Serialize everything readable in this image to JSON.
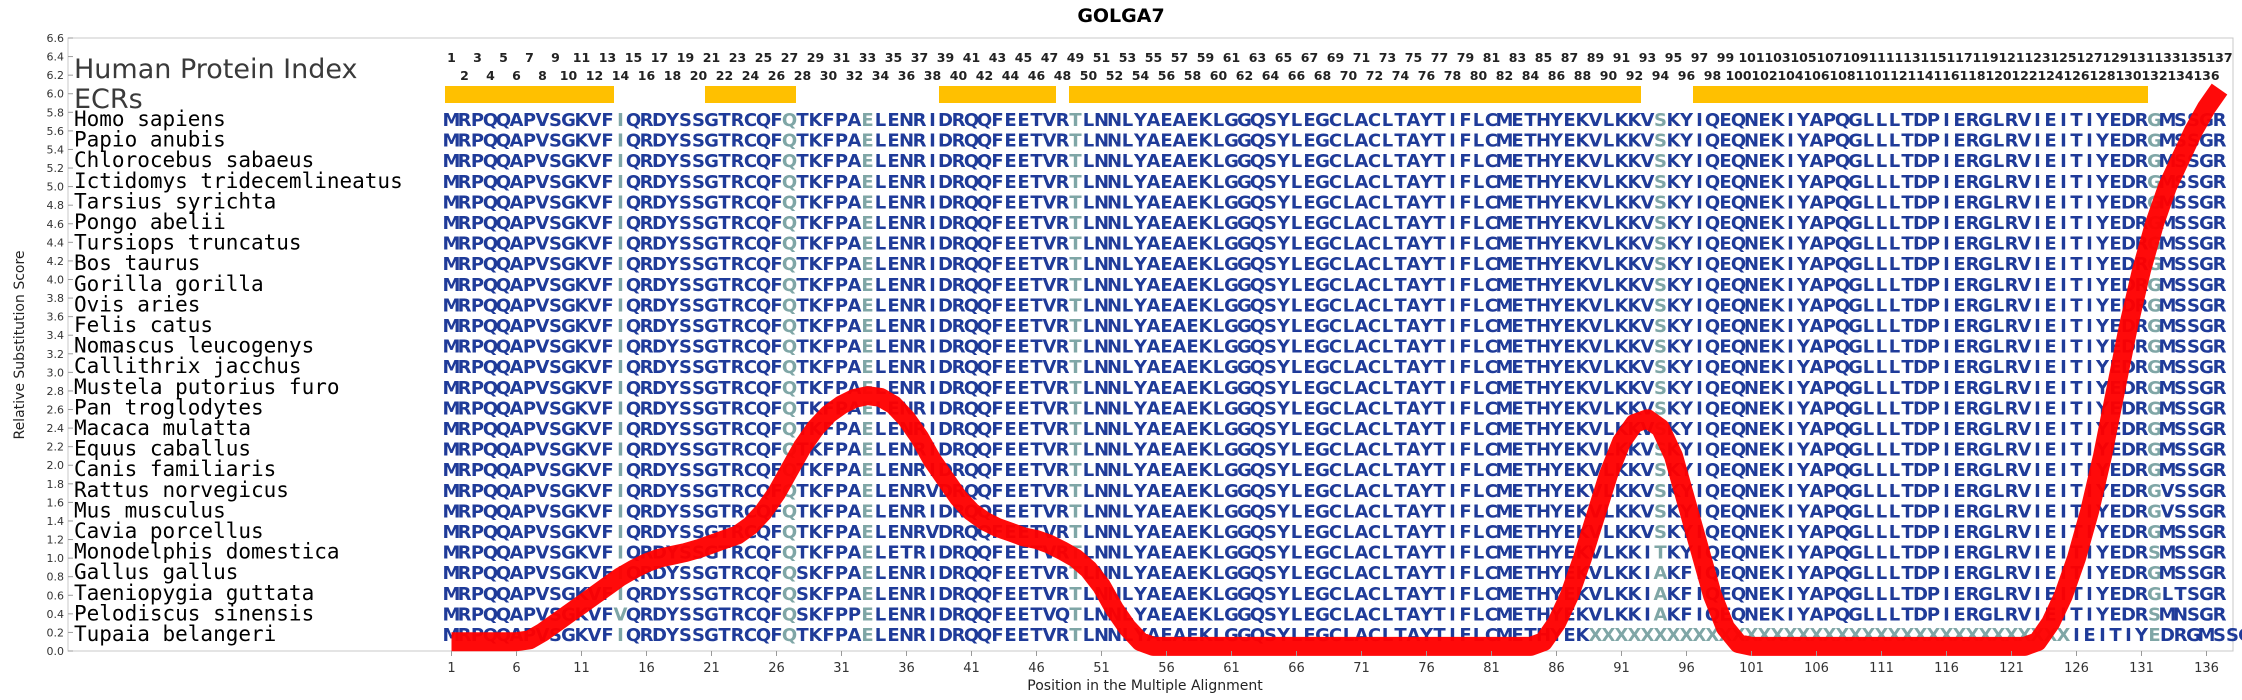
{
  "chart_data": {
    "type": "line",
    "title": "GOLGA7",
    "xlabel": "Position in the Multiple Alignment",
    "ylabel": "Relative Substitution Score",
    "xlim": [
      0,
      137
    ],
    "ylim": [
      0,
      6.6
    ],
    "y_ticks": [
      0.0,
      0.2,
      0.4,
      0.6,
      0.8,
      1.0,
      1.2,
      1.4,
      1.6,
      1.8,
      2.0,
      2.2,
      2.4,
      2.6,
      2.8,
      3.0,
      3.2,
      3.4,
      3.6,
      3.8,
      4.0,
      4.2,
      4.4,
      4.6,
      4.8,
      5.0,
      5.2,
      5.4,
      5.6,
      5.8,
      6.0,
      6.2,
      6.4,
      6.6
    ],
    "x_ticks": [
      1,
      6,
      11,
      16,
      21,
      26,
      31,
      36,
      41,
      46,
      51,
      56,
      61,
      66,
      71,
      76,
      81,
      86,
      91,
      96,
      101,
      106,
      111,
      116,
      121,
      126,
      131,
      136
    ],
    "row_label_index": "Human Protein Index",
    "row_label_ecrs": "ECRs",
    "protein_index_count": 137,
    "ecr_regions": [
      [
        1,
        13
      ],
      [
        21,
        27
      ],
      [
        39,
        47
      ],
      [
        49,
        92
      ],
      [
        97,
        131
      ]
    ],
    "ecr_color": "#FFC000",
    "line_color": "#FF0000",
    "residue_color": "#1F3B99",
    "variant_color": "#7FA6A6",
    "score_curve": {
      "x": [
        1,
        2,
        3,
        4,
        5,
        6,
        7,
        8,
        9,
        10,
        11,
        12,
        13,
        14,
        15,
        16,
        17,
        18,
        19,
        20,
        21,
        22,
        23,
        24,
        25,
        26,
        27,
        28,
        29,
        30,
        31,
        32,
        33,
        34,
        35,
        36,
        37,
        38,
        39,
        40,
        41,
        42,
        43,
        44,
        45,
        46,
        47,
        48,
        49,
        50,
        51,
        52,
        53,
        54,
        55,
        56,
        57,
        58,
        59,
        60,
        61,
        62,
        63,
        64,
        65,
        66,
        67,
        68,
        69,
        70,
        71,
        72,
        73,
        74,
        75,
        76,
        77,
        78,
        79,
        80,
        81,
        82,
        83,
        84,
        85,
        86,
        87,
        88,
        89,
        90,
        91,
        92,
        93,
        94,
        95,
        96,
        97,
        98,
        99,
        100,
        101,
        102,
        103,
        104,
        105,
        106,
        107,
        108,
        109,
        110,
        111,
        112,
        113,
        114,
        115,
        116,
        117,
        118,
        119,
        120,
        121,
        122,
        123,
        124,
        125,
        126,
        127,
        128,
        129,
        130,
        131,
        132,
        133,
        134,
        135,
        136,
        137
      ],
      "y": [
        0.1,
        0.1,
        0.1,
        0.1,
        0.1,
        0.1,
        0.12,
        0.2,
        0.3,
        0.4,
        0.5,
        0.6,
        0.7,
        0.8,
        0.88,
        0.95,
        1.0,
        1.03,
        1.06,
        1.1,
        1.15,
        1.2,
        1.25,
        1.35,
        1.5,
        1.7,
        1.95,
        2.2,
        2.4,
        2.55,
        2.65,
        2.72,
        2.75,
        2.73,
        2.65,
        2.5,
        2.3,
        2.05,
        1.85,
        1.65,
        1.5,
        1.4,
        1.33,
        1.28,
        1.23,
        1.2,
        1.15,
        1.08,
        1.0,
        0.88,
        0.7,
        0.45,
        0.25,
        0.1,
        0.05,
        0.05,
        0.05,
        0.05,
        0.05,
        0.05,
        0.05,
        0.05,
        0.05,
        0.05,
        0.05,
        0.05,
        0.05,
        0.05,
        0.05,
        0.05,
        0.05,
        0.05,
        0.05,
        0.05,
        0.05,
        0.05,
        0.05,
        0.05,
        0.05,
        0.05,
        0.05,
        0.05,
        0.05,
        0.05,
        0.1,
        0.3,
        0.6,
        1.0,
        1.45,
        1.9,
        2.25,
        2.45,
        2.5,
        2.4,
        2.1,
        1.6,
        1.1,
        0.6,
        0.25,
        0.08,
        0.05,
        0.05,
        0.05,
        0.05,
        0.05,
        0.05,
        0.05,
        0.05,
        0.05,
        0.05,
        0.05,
        0.05,
        0.05,
        0.05,
        0.05,
        0.05,
        0.05,
        0.05,
        0.05,
        0.05,
        0.05,
        0.05,
        0.1,
        0.3,
        0.6,
        1.0,
        1.5,
        2.1,
        2.8,
        3.5,
        4.1,
        4.6,
        5.0,
        5.3,
        5.6,
        5.85,
        6.05
      ]
    },
    "variant_columns": [
      14,
      27,
      33,
      49,
      94,
      132
    ],
    "species": [
      {
        "name": "Homo sapiens",
        "seq": "MRPQQAPVSGKVFIQRDYSSGTRCQFQTKFPAELENRIDRQQFEETVRTLNNLYAEAEKLGGQSYLEGCLACLTAYTIFLCMETHYEKVLKKVSKYIQEQNEKIYAPQGLLLTDPIERGLRVIEITIYEDRGMSSGR"
      },
      {
        "name": "Papio anubis",
        "seq": "MRPQQAPVSGKVFIQRDYSSGTRCQFQTKFPAELENRIDRQQFEETVRTLNNLYAEAEKLGGQSYLEGCLACLTAYTIFLCMETHYEKVLKKVSKYIQEQNEKIYAPQGLLLTDPIERGLRVIEITIYEDRGMSSGR"
      },
      {
        "name": "Chlorocebus sabaeus",
        "seq": "MRPQQAPVSGKVFIQRDYSSGTRCQFQTKFPAELENRIDRQQFEETVRTLNNLYAEAEKLGGQSYLEGCLACLTAYTIFLCMETHYEKVLKKVSKYIQEQNEKIYAPQGLLLTDPIERGLRVIEITIYEDRGMSSGR"
      },
      {
        "name": "Ictidomys tridecemlineatus",
        "seq": "MRPQQAPVSGKVFIQRDYSSGTRCQFQTKFPAELENRIDRQQFEETVRTLNNLYAEAEKLGGQSYLEGCLACLTAYTIFLCMETHYEKVLKKVSKYIQEQNEKIYAPQGLLLTDPIERGLRVIEITIYEDRGMSSGR"
      },
      {
        "name": "Tarsius syrichta",
        "seq": "MRPQQAPVSGKVFIQRDYSSGTRCQFQTKFPAELENRIDRQQFEETVRTLNNLYAEAEKLGGQSYLEGCLACLTAYTIFLCMETHYEKVLKKVSKYIQEQNEKIYAPQGLLLTDPIERGLRVIEITIYEDRGMSSGR"
      },
      {
        "name": "Pongo abelii",
        "seq": "MRPQQAPVSGKVFIQRDYSSGTRCQFQTKFPAELENRIDRQQFEETVRTLNNLYAEAEKLGGQSYLEGCLACLTAYTIFLCMETHYEKVLKKVSKYIQEQNEKIYAPQGLLLTDPIERGLRVIEITIYEDRGMSSGR"
      },
      {
        "name": "Tursiops truncatus",
        "seq": "MRPQQAPVSGKVFIQRDYSSGTRCQFQTKFPAELENRIDRQQFEETVRTLNNLYAEAEKLGGQSYLEGCLACLTAYTIFLCMETHYEKVLKKVSKYIQEQNEKIYAPQGLLLTDPIERGLRVIEITIYEDRGMSSGR"
      },
      {
        "name": "Bos taurus",
        "seq": "MRPQQAPVSGKVFIQRDYSSGTRCQFQTKFPAELENRIDRQQFEETVRTLNNLYAEAEKLGGQSYLEGCLACLTAYTIFLCMETHYEKVLKKVSKYIQEQNEKIYAPQGLLLTDPIERGLRVIEITIYEDRGMSSGR"
      },
      {
        "name": "Gorilla gorilla",
        "seq": "MRPQQAPVSGKVFIQRDYSSGTRCQFQTKFPAELENRIDRQQFEETVRTLNNLYAEAEKLGGQSYLEGCLACLTAYTIFLCMETHYEKVLKKVSKYIQEQNEKIYAPQGLLLTDPIERGLRVIEITIYEDRGMSSGR"
      },
      {
        "name": "Ovis aries",
        "seq": "MRPQQAPVSGKVFIQRDYSSGTRCQFQTKFPAELENRIDRQQFEETVRTLNNLYAEAEKLGGQSYLEGCLACLTAYTIFLCMETHYEKVLKKVSKYIQEQNEKIYAPQGLLLTDPIERGLRVIEITIYEDRGMSSGR"
      },
      {
        "name": "Felis catus",
        "seq": "MRPQQAPVSGKVFIQRDYSSGTRCQFQTKFPAELENRIDRQQFEETVRTLNNLYAEAEKLGGQSYLEGCLACLTAYTIFLCMETHYEKVLKKVSKYIQEQNEKIYAPQGLLLTDPIERGLRVIEITIYEDRGMSSGR"
      },
      {
        "name": "Nomascus leucogenys",
        "seq": "MRPQQAPVSGKVFIQRDYSSGTRCQFQTKFPAELENRIDRQQFEETVRTLNNLYAEAEKLGGQSYLEGCLACLTAYTIFLCMETHYEKVLKKVSKYIQEQNEKIYAPQGLLLTDPIERGLRVIEITIYEDRGMSSGR"
      },
      {
        "name": "Callithrix jacchus",
        "seq": "MRPQQAPVSGKVFIQRDYSSGTRCQFQTKFPAELENRIDRQQFEETVRTLNNLYAEAEKLGGQSYLEGCLACLTAYTIFLCMETHYEKVLKKVSKYIQEQNEKIYAPQGLLLTDPIERGLRVIEITIYEDRGMSSGR"
      },
      {
        "name": "Mustela putorius furo",
        "seq": "MRPQQAPVSGKVFIQRDYSSGTRCQFQTKFPAELENRIDRQQFEETVRTLNNLYAEAEKLGGQSYLEGCLACLTAYTIFLCMETHYEKVLKKVSKYIQEQNEKIYAPQGLLLTDPIERGLRVIEITIYEDRGMSSGR"
      },
      {
        "name": "Pan troglodytes",
        "seq": "MRPQQAPVSGKVFIQRDYSSGTRCQFQTKFPAELENRIDRQQFEETVRTLNNLYAEAEKLGGQSYLEGCLACLTAYTIFLCMETHYEKVLKKVSKYIQEQNEKIYAPQGLLLTDPIERGLRVIEITIYEDRGMSSGR"
      },
      {
        "name": "Macaca mulatta",
        "seq": "MRPQQAPVSGKVFIQRDYSSGTRCQFQTKFPAELENRIDRQQFEETVRTLNNLYAEAEKLGGQSYLEGCLACLTAYTIFLCMETHYEKVLKKVSKYIQEQNEKIYAPQGLLLTDPIERGLRVIEITIYEDRGMSSGR"
      },
      {
        "name": "Equus caballus",
        "seq": "MRPQQAPVSGKVFIQRDYSSGTRCQFQTKFPAELENRIDRQQFEETVRTLNNLYAEAEKLGGQSYLEGCLACLTAYTIFLCMETHYEKVLKKVSKYIQEQNEKIYAPQGLLLTDPIERGLRVIEITIYEDRGMSSGR"
      },
      {
        "name": "Canis familiaris",
        "seq": "MRPQQAPVSGKVFIQRDYSSGTRCQFQTKFPAELENRIDRQQFEETVRTLNNLYAEAEKLGGQSYLEGCLACLTAYTIFLCMETHYEKVLKKVSKYIQEQNEKIYAPQGLLLTDPIERGLRVIEITIYEDRGMSSGR"
      },
      {
        "name": "Rattus norvegicus",
        "seq": "MRPQQAPVSGKVFIQRDYSSGTRCQFQTKFPAELENRVDRQQFEETVRTLNNLYAEAEKLGGQSYLEGCLACLTAYTIFLCMETHYEKVLKKVSKYIQEQNEKIYAPQGLLLTDPIERGLRVIEITIYEDRGVSSGR"
      },
      {
        "name": "Mus musculus",
        "seq": "MRPQQAPVSGKVFIQRDYSSGTRCQFQTKFPAELENRIDRQQFEETVRTLNNLYAEAEKLGGQSYLEGCLACLTAYTIFLCMETHYEKVLKKVSKYIQEQNEKIYAPQGLLLTDPIERGLRVIEITIYEDRGVSSGR"
      },
      {
        "name": "Cavia porcellus",
        "seq": "MRPQQAPVSGKVFIQRDYSSGTRCQFQTKFPAELENRVDRQQFEETVRTLNNLYAEAEKLGGQSYLEGCLACLTAYTIFLCMETHYEKVLKKVSKYIQEQNEKIYAPQGLLLTDPIERGLRVIEITIYEDRGMSSGR"
      },
      {
        "name": "Monodelphis domestica",
        "seq": "MRPQQAPVSGKVFIQRDYSSGTRCQFQTKFPAELETRIDRQQFEETVRTLNNLYAEAEKLGGQSYLEGCLACLTAYTIFLCMETHYEKVLKKITKYIQEQNEKIYAPQGLLLTDPIERGLRVIEITIYEDRSMSSGR"
      },
      {
        "name": "Gallus gallus",
        "seq": "MRPQQAPVSGKVFIQRDYSSGTRCQFQSKFPAELENRIDRQQFEETVRTLNNLYAEAEKLGGQSYLEGCLACLTAYTIFLCMETHYEKVLKKIAKFIQEQNEKIYAPQGLLLTDPIERGLRVIEITIYEDRGMSSGR"
      },
      {
        "name": "Taeniopygia guttata",
        "seq": "MRPQQAPVSGKVFIQRDYSSGTRCQFQSKFPAELENRIDRQQFEETVRTLNNLYAEAEKLGGQSYLEGCLACLTAYTIFLCMETHYEKVLKKIAKFIQEQNEKIYAPQGLLLTDPIERGLRVIEITIYEDRGLTSGR"
      },
      {
        "name": "Pelodiscus sinensis",
        "seq": "MRPQQAPVSGKVFVQRDYSSGTRCQFQSKFPPELENRIDRQQFEETVQTLNNLYAEAEKLGGQSYLEGCLACLTAYTIFLCMETHYEKVLKKIAKFIQEQNEKIYAPQGLLLTDPIERGLRVIEITIYEDRSMNSGR"
      },
      {
        "name": "Tupaia belangeri",
        "seq": "MRPQQAPVSGKVFIQRDYSSGTRCQFQTKFPAELENRIDRQQFEETVRTLNNLYAEAEKLGGQSYLEGCLACLTAYTIFLCMETHYEKXXXXXXXXXXXXXXXXXXXXXXXXXXXXXXXXXXXXXIEITIYEDRGMSSGR"
      }
    ]
  }
}
